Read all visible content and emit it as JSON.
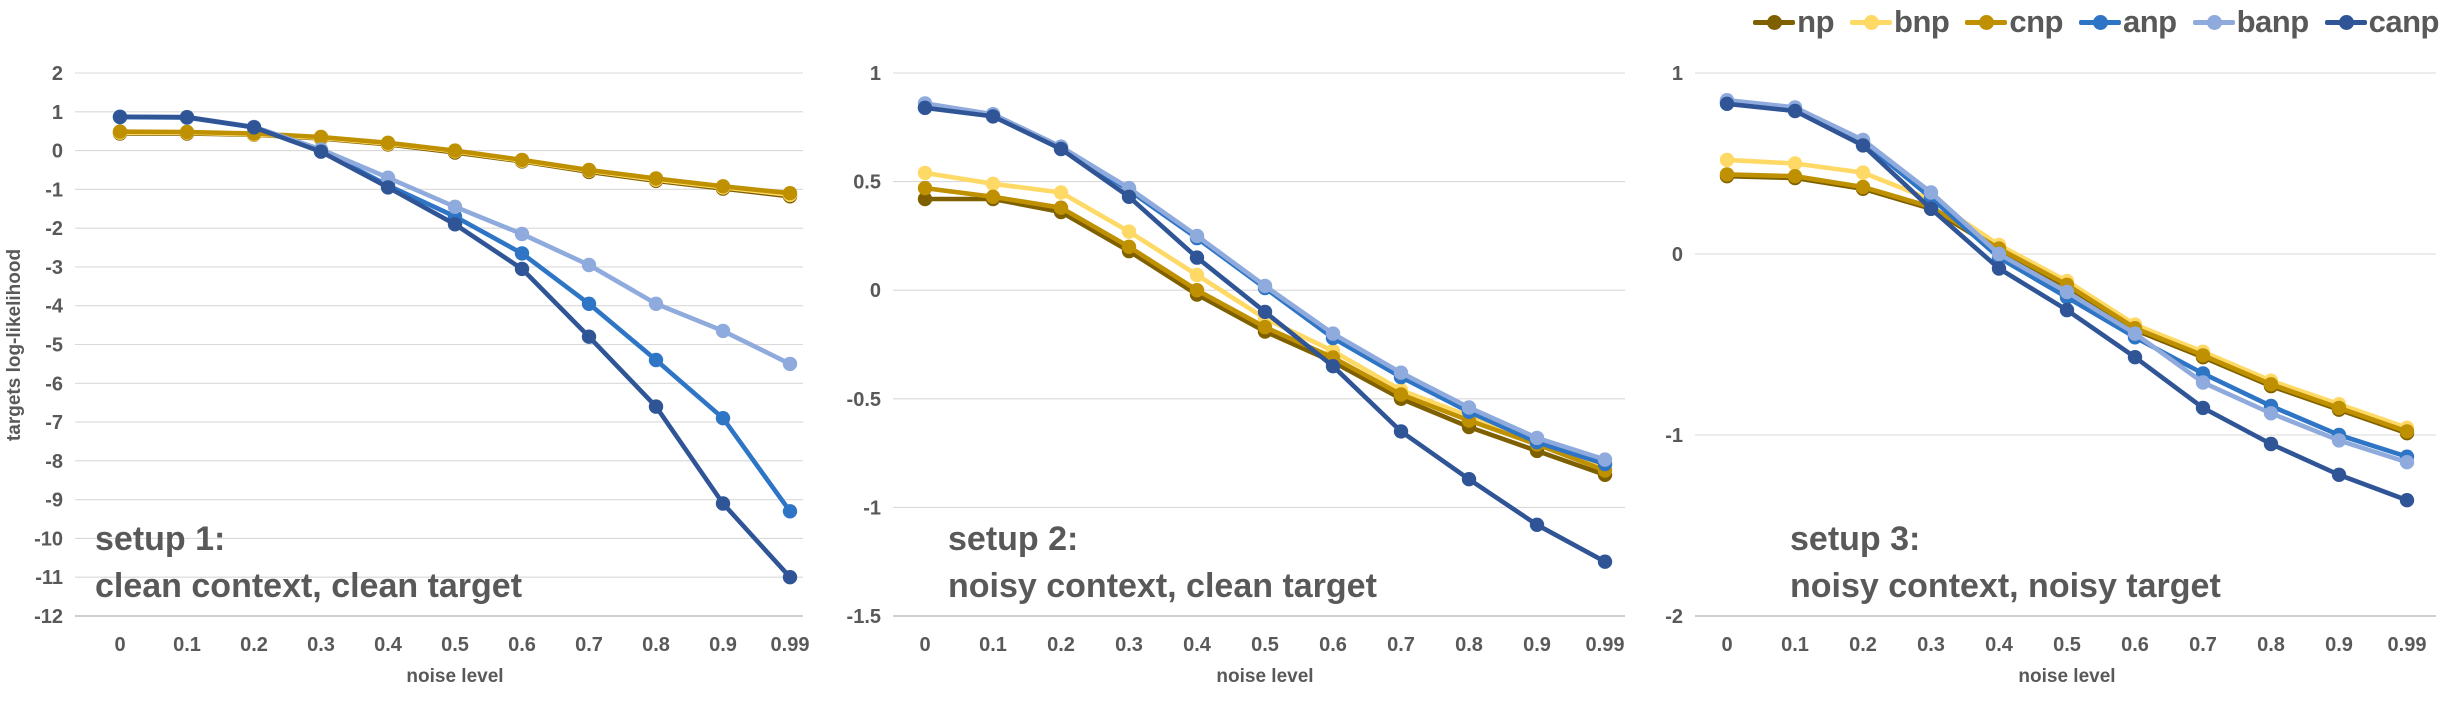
{
  "legend": {
    "items": [
      {
        "label": "np",
        "color": "#7F6000"
      },
      {
        "label": "bnp",
        "color": "#FFD966"
      },
      {
        "label": "cnp",
        "color": "#BF9000"
      },
      {
        "label": "anp",
        "color": "#2E75C6"
      },
      {
        "label": "banp",
        "color": "#8FAADC"
      },
      {
        "label": "canp",
        "color": "#2F5597"
      }
    ]
  },
  "chart_data": [
    {
      "type": "line",
      "subtitle1": "setup 1:",
      "subtitle2": "clean context, clean target",
      "xlabel": "noise level",
      "ylabel": "targets log-likelihood",
      "categories": [
        "0",
        "0.1",
        "0.2",
        "0.3",
        "0.4",
        "0.5",
        "0.6",
        "0.7",
        "0.8",
        "0.9",
        "0.99"
      ],
      "ylim": [
        -12,
        2
      ],
      "yticks": [
        "2",
        "1",
        "0",
        "-1",
        "-2",
        "-3",
        "-4",
        "-5",
        "-6",
        "-7",
        "-8",
        "-9",
        "-10",
        "-11",
        "-12"
      ],
      "grid": true,
      "legend_position": "top-right-shared",
      "series": [
        {
          "name": "np",
          "color": "#7F6000",
          "values": [
            0.44,
            0.44,
            0.41,
            0.31,
            0.16,
            -0.05,
            -0.28,
            -0.55,
            -0.78,
            -0.98,
            -1.18
          ]
        },
        {
          "name": "bnp",
          "color": "#FFD966",
          "values": [
            0.46,
            0.46,
            0.42,
            0.33,
            0.18,
            -0.02,
            -0.26,
            -0.52,
            -0.75,
            -0.95,
            -1.14
          ]
        },
        {
          "name": "cnp",
          "color": "#BF9000",
          "values": [
            0.49,
            0.48,
            0.44,
            0.35,
            0.2,
            0.0,
            -0.24,
            -0.5,
            -0.72,
            -0.92,
            -1.1
          ]
        },
        {
          "name": "anp",
          "color": "#2E75C6",
          "values": [
            0.86,
            0.85,
            0.6,
            0.0,
            -0.9,
            -1.7,
            -2.65,
            -3.95,
            -5.4,
            -6.9,
            -9.3
          ]
        },
        {
          "name": "banp",
          "color": "#8FAADC",
          "values": [
            0.87,
            0.86,
            0.61,
            0.03,
            -0.7,
            -1.45,
            -2.15,
            -2.95,
            -3.95,
            -4.65,
            -5.5
          ]
        },
        {
          "name": "canp",
          "color": "#2F5597",
          "values": [
            0.87,
            0.86,
            0.6,
            -0.03,
            -0.95,
            -1.9,
            -3.05,
            -4.8,
            -6.6,
            -9.1,
            -11.0
          ]
        }
      ]
    },
    {
      "type": "line",
      "subtitle1": "setup 2:",
      "subtitle2": "noisy context, clean target",
      "xlabel": "noise level",
      "ylabel": "",
      "categories": [
        "0",
        "0.1",
        "0.2",
        "0.3",
        "0.4",
        "0.5",
        "0.6",
        "0.7",
        "0.8",
        "0.9",
        "0.99"
      ],
      "ylim": [
        -1.5,
        1
      ],
      "yticks": [
        "1",
        "0.5",
        "0",
        "-0.5",
        "-1",
        "-1.5"
      ],
      "grid": true,
      "legend_position": "top-right-shared",
      "series": [
        {
          "name": "np",
          "color": "#7F6000",
          "values": [
            0.42,
            0.42,
            0.36,
            0.18,
            -0.02,
            -0.19,
            -0.33,
            -0.5,
            -0.63,
            -0.74,
            -0.85
          ]
        },
        {
          "name": "bnp",
          "color": "#FFD966",
          "values": [
            0.54,
            0.49,
            0.45,
            0.27,
            0.07,
            -0.13,
            -0.28,
            -0.46,
            -0.58,
            -0.69,
            -0.81
          ]
        },
        {
          "name": "cnp",
          "color": "#BF9000",
          "values": [
            0.47,
            0.43,
            0.38,
            0.2,
            0.0,
            -0.17,
            -0.31,
            -0.48,
            -0.6,
            -0.71,
            -0.83
          ]
        },
        {
          "name": "anp",
          "color": "#2E75C6",
          "values": [
            0.84,
            0.81,
            0.66,
            0.46,
            0.24,
            0.01,
            -0.22,
            -0.4,
            -0.56,
            -0.7,
            -0.8
          ]
        },
        {
          "name": "banp",
          "color": "#8FAADC",
          "values": [
            0.86,
            0.81,
            0.66,
            0.47,
            0.25,
            0.02,
            -0.2,
            -0.38,
            -0.54,
            -0.68,
            -0.78
          ]
        },
        {
          "name": "canp",
          "color": "#2F5597",
          "values": [
            0.84,
            0.8,
            0.65,
            0.43,
            0.15,
            -0.1,
            -0.35,
            -0.65,
            -0.87,
            -1.08,
            -1.25
          ]
        }
      ]
    },
    {
      "type": "line",
      "subtitle1": "setup 3:",
      "subtitle2": "noisy context, noisy target",
      "xlabel": "noise level",
      "ylabel": "",
      "categories": [
        "0",
        "0.1",
        "0.2",
        "0.3",
        "0.4",
        "0.5",
        "0.6",
        "0.7",
        "0.8",
        "0.9",
        "0.99"
      ],
      "ylim": [
        -2,
        1
      ],
      "yticks": [
        "1",
        "0",
        "-1",
        "-2"
      ],
      "grid": true,
      "legend_position": "top-right-shared",
      "series": [
        {
          "name": "np",
          "color": "#7F6000",
          "values": [
            0.43,
            0.42,
            0.36,
            0.25,
            0.02,
            -0.18,
            -0.42,
            -0.57,
            -0.73,
            -0.86,
            -0.99
          ]
        },
        {
          "name": "bnp",
          "color": "#FFD966",
          "values": [
            0.52,
            0.5,
            0.45,
            0.3,
            0.05,
            -0.15,
            -0.39,
            -0.54,
            -0.7,
            -0.83,
            -0.96
          ]
        },
        {
          "name": "cnp",
          "color": "#BF9000",
          "values": [
            0.44,
            0.43,
            0.37,
            0.26,
            0.03,
            -0.17,
            -0.41,
            -0.56,
            -0.72,
            -0.85,
            -0.98
          ]
        },
        {
          "name": "anp",
          "color": "#2E75C6",
          "values": [
            0.84,
            0.8,
            0.62,
            0.31,
            -0.02,
            -0.24,
            -0.46,
            -0.66,
            -0.84,
            -1.0,
            -1.12
          ]
        },
        {
          "name": "banp",
          "color": "#8FAADC",
          "values": [
            0.85,
            0.81,
            0.63,
            0.34,
            0.0,
            -0.21,
            -0.44,
            -0.71,
            -0.88,
            -1.03,
            -1.15
          ]
        },
        {
          "name": "canp",
          "color": "#2F5597",
          "values": [
            0.83,
            0.79,
            0.6,
            0.25,
            -0.08,
            -0.31,
            -0.57,
            -0.85,
            -1.05,
            -1.22,
            -1.36
          ]
        }
      ]
    }
  ]
}
